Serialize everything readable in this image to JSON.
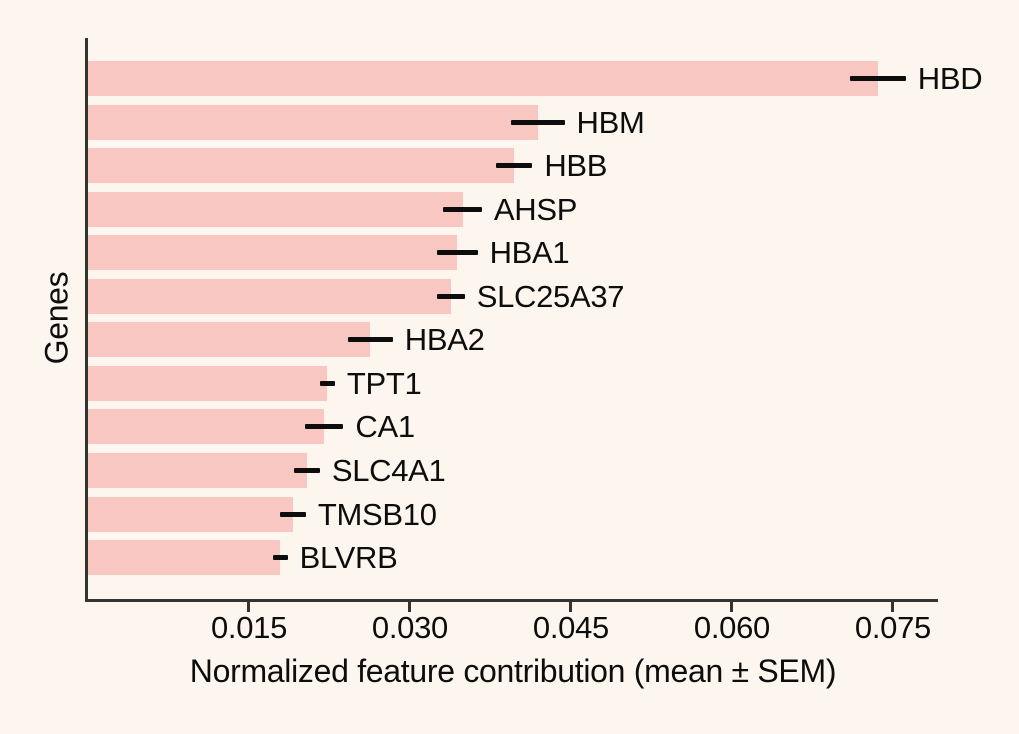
{
  "figure": {
    "background_color": "#fdf6ee",
    "bar_color": "#f8c7c2",
    "axis_color": "#33332f",
    "text_color": "#0d0d0d",
    "error_bar_color": "#0d0d0d"
  },
  "chart_data": {
    "type": "bar",
    "orientation": "horizontal",
    "title": "",
    "xlabel": "Normalized feature contribution (mean ± SEM)",
    "ylabel": "Genes",
    "xlim": [
      0,
      0.0792
    ],
    "grid": false,
    "legend": false,
    "x_ticks": [
      0.015,
      0.03,
      0.045,
      0.06,
      0.075
    ],
    "x_tick_labels": [
      "0.015",
      "0.030",
      "0.045",
      "0.060",
      "0.075"
    ],
    "categories": [
      "HBD",
      "HBM",
      "HBB",
      "AHSP",
      "HBA1",
      "SLC25A37",
      "HBA2",
      "TPT1",
      "CA1",
      "SLC4A1",
      "TMSB10",
      "BLVRB"
    ],
    "series": [
      {
        "name": "Normalized feature contribution (mean)",
        "values": [
          0.0736,
          0.0419,
          0.0397,
          0.0349,
          0.0344,
          0.0338,
          0.0263,
          0.0223,
          0.022,
          0.0204,
          0.0191,
          0.0179
        ],
        "sem": [
          0.0026,
          0.0025,
          0.0017,
          0.0018,
          0.0019,
          0.0013,
          0.0021,
          0.0007,
          0.0018,
          0.0012,
          0.0012,
          0.0007
        ]
      }
    ]
  }
}
